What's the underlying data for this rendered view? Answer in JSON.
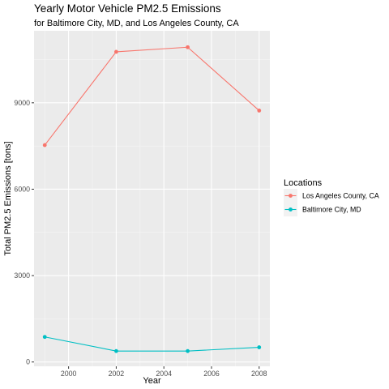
{
  "chart_data": {
    "type": "line",
    "title": "Yearly Motor Vehicle PM2.5 Emissions",
    "subtitle": "for Baltimore City, MD, and Los Angeles County, CA",
    "xlabel": "Year",
    "ylabel": "Total PM2.5 Emissions [tons]",
    "x": [
      1999,
      2002,
      2005,
      2008
    ],
    "x_ticks": [
      "2000",
      "2002",
      "2004",
      "2006",
      "2008"
    ],
    "y_ticks": [
      "0",
      "3000",
      "6000",
      "9000"
    ],
    "xlim": [
      1998.55,
      2008.45
    ],
    "ylim": [
      -150,
      11500
    ],
    "grid": true,
    "legend": {
      "title": "Locations",
      "position": "right"
    },
    "series": [
      {
        "name": "Los Angeles County, CA",
        "color": "#F8766D",
        "values": [
          7530,
          10770,
          10930,
          8730
        ]
      },
      {
        "name": "Baltimore City, MD",
        "color": "#00BFC4",
        "values": [
          870,
          380,
          380,
          510
        ]
      }
    ]
  }
}
